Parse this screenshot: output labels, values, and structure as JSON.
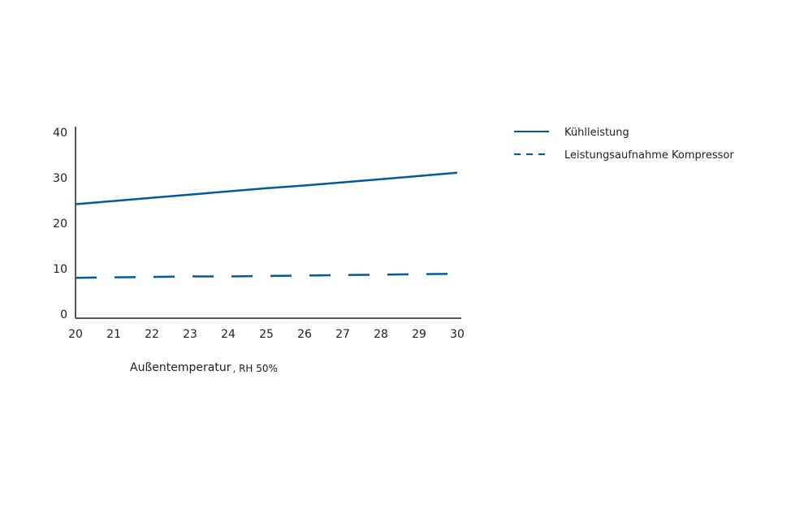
{
  "chart_data": {
    "type": "line",
    "x": [
      20,
      21,
      22,
      23,
      24,
      25,
      26,
      27,
      28,
      29,
      30
    ],
    "xlim": [
      20,
      30
    ],
    "ylim": [
      0,
      40
    ],
    "xticks": [
      "20",
      "21",
      "22",
      "23",
      "24",
      "25",
      "26",
      "27",
      "28",
      "29",
      "30"
    ],
    "yticks": [
      "0",
      "10",
      "20",
      "30",
      "40"
    ],
    "xlabel_main": "Außentemperatur",
    "xlabel_sub": ", RH 50%",
    "ylabel": "",
    "title": "",
    "grid": false,
    "legend_position": "top-right",
    "series": [
      {
        "name": "Kühlleistung",
        "style": "solid",
        "color": "#005a9e",
        "values": [
          24.2,
          24.9,
          25.6,
          26.3,
          27.0,
          27.7,
          28.3,
          29.0,
          29.7,
          30.4,
          31.1
        ]
      },
      {
        "name": "Leistungsaufnahme Kompressor",
        "style": "dashed",
        "color": "#005a9e",
        "values": [
          8.0,
          8.1,
          8.2,
          8.3,
          8.3,
          8.4,
          8.5,
          8.6,
          8.7,
          8.8,
          8.9
        ]
      }
    ]
  }
}
